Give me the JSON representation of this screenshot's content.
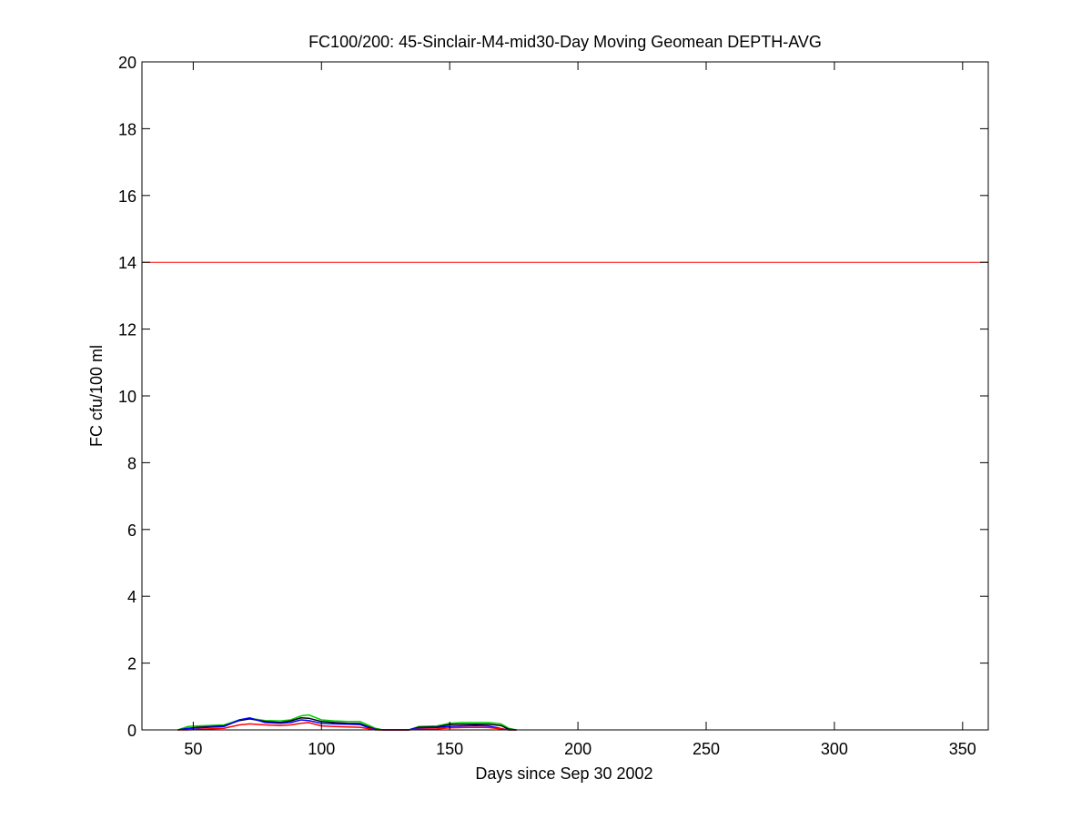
{
  "chart_data": {
    "type": "line",
    "title": "FC100/200: 45-Sinclair-M4-mid30-Day Moving Geomean DEPTH-AVG",
    "xlabel": "Days since Sep 30 2002",
    "ylabel": "FC cfu/100 ml",
    "xlim": [
      30,
      360
    ],
    "ylim": [
      0,
      20
    ],
    "xticks": [
      50,
      100,
      150,
      200,
      250,
      300,
      350
    ],
    "yticks": [
      0,
      2,
      4,
      6,
      8,
      10,
      12,
      14,
      16,
      18,
      20
    ],
    "grid": false,
    "reference_line": {
      "y": 14,
      "color": "#ff0000"
    },
    "series": [
      {
        "color": "#00cc00",
        "x": [
          44,
          48,
          52,
          62,
          68,
          72,
          78,
          84,
          88,
          92,
          95,
          100,
          105,
          110,
          115,
          118,
          121,
          124,
          134,
          138,
          145,
          150,
          155,
          160,
          165,
          170,
          173,
          176
        ],
        "y": [
          0,
          0.1,
          0.12,
          0.15,
          0.3,
          0.35,
          0.28,
          0.27,
          0.3,
          0.42,
          0.45,
          0.3,
          0.27,
          0.25,
          0.25,
          0.15,
          0.05,
          0,
          0,
          0.1,
          0.12,
          0.2,
          0.22,
          0.22,
          0.22,
          0.18,
          0.05,
          0
        ]
      },
      {
        "color": "#000000",
        "x": [
          44,
          48,
          52,
          62,
          68,
          72,
          78,
          84,
          88,
          92,
          95,
          100,
          105,
          110,
          115,
          118,
          121,
          124,
          134,
          138,
          145,
          150,
          155,
          160,
          165,
          170,
          173,
          176
        ],
        "y": [
          0,
          0.05,
          0.08,
          0.12,
          0.28,
          0.33,
          0.25,
          0.22,
          0.27,
          0.36,
          0.35,
          0.25,
          0.22,
          0.2,
          0.19,
          0.1,
          0.02,
          0,
          0,
          0.08,
          0.09,
          0.16,
          0.17,
          0.17,
          0.17,
          0.13,
          0.02,
          0
        ]
      },
      {
        "color": "#0000ff",
        "x": [
          44,
          48,
          52,
          62,
          68,
          72,
          78,
          84,
          88,
          92,
          95,
          100,
          105,
          110,
          115,
          118,
          121,
          124,
          134,
          138,
          145,
          150,
          155,
          160,
          165,
          170,
          173,
          176
        ],
        "y": [
          0,
          0.04,
          0.06,
          0.1,
          0.3,
          0.36,
          0.22,
          0.2,
          0.22,
          0.3,
          0.28,
          0.2,
          0.18,
          0.17,
          0.16,
          0.08,
          0.01,
          0,
          0,
          0.06,
          0.07,
          0.1,
          0.12,
          0.13,
          0.12,
          0.04,
          0.0,
          0
        ]
      },
      {
        "color": "#ff0000",
        "x": [
          44,
          48,
          52,
          62,
          68,
          72,
          78,
          84,
          88,
          92,
          95,
          100,
          105,
          110,
          115,
          118,
          121,
          124,
          134,
          138,
          145,
          150,
          155,
          160,
          165,
          170,
          173,
          176
        ],
        "y": [
          0,
          0.0,
          0.02,
          0.05,
          0.15,
          0.18,
          0.15,
          0.13,
          0.15,
          0.2,
          0.22,
          0.12,
          0.1,
          0.09,
          0.08,
          0.04,
          0.0,
          0,
          0,
          0.02,
          0.03,
          0.06,
          0.07,
          0.08,
          0.07,
          0.03,
          0.0,
          0
        ]
      }
    ]
  }
}
